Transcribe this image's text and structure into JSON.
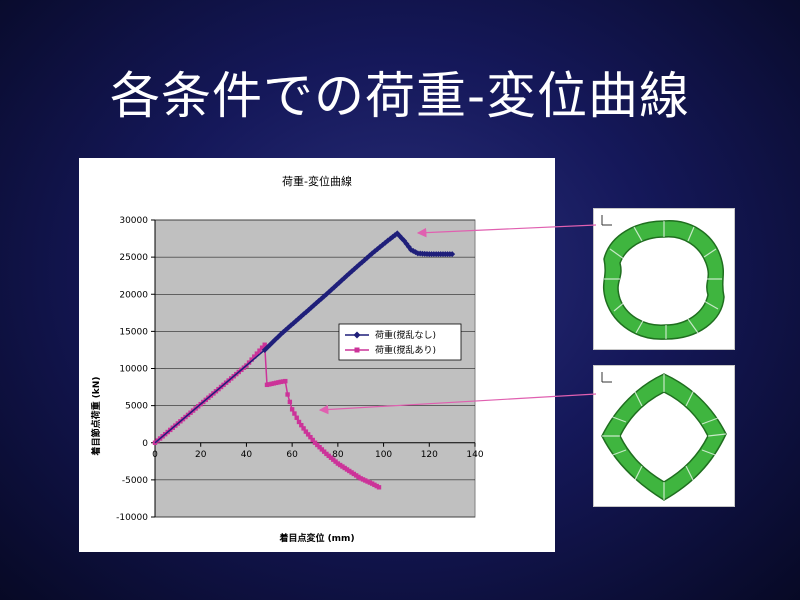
{
  "slide": {
    "title": "各条件での荷重-変位曲線"
  },
  "chart_data": {
    "type": "line",
    "title": "荷重-変位曲線",
    "xlabel": "着目点変位 (mm)",
    "ylabel": "着目節点荷重 (kN)",
    "xlim": [
      0,
      140
    ],
    "ylim": [
      -10000,
      30000
    ],
    "xticks": [
      0,
      20,
      40,
      60,
      80,
      100,
      120,
      140
    ],
    "yticks": [
      -10000,
      -5000,
      0,
      5000,
      10000,
      15000,
      20000,
      25000,
      30000
    ],
    "xtick_labels": [
      "0",
      "20",
      "40",
      "60",
      "80",
      "100",
      "120",
      "140"
    ],
    "ytick_labels": [
      "-10000",
      "-5000",
      "0",
      "5000",
      "10000",
      "15000",
      "20000",
      "25000",
      "30000"
    ],
    "grid": true,
    "legend_position": "center-right",
    "series": [
      {
        "name": "荷重(搅乱なし)",
        "color": "#1f1f7a",
        "marker": "diamond",
        "points": [
          [
            0,
            0
          ],
          [
            10,
            2600
          ],
          [
            20,
            5200
          ],
          [
            30,
            7800
          ],
          [
            40,
            10400
          ],
          [
            48,
            12500
          ],
          [
            55,
            14600
          ],
          [
            65,
            17300
          ],
          [
            75,
            20000
          ],
          [
            85,
            22800
          ],
          [
            95,
            25500
          ],
          [
            103,
            27500
          ],
          [
            106,
            28200
          ],
          [
            109,
            27200
          ],
          [
            112,
            26000
          ],
          [
            115,
            25500
          ],
          [
            120,
            25400
          ],
          [
            125,
            25400
          ],
          [
            130,
            25400
          ]
        ]
      },
      {
        "name": "荷重(搅乱あり)",
        "color": "#cc3399",
        "marker": "square",
        "points": [
          [
            0,
            0
          ],
          [
            10,
            2600
          ],
          [
            20,
            5200
          ],
          [
            30,
            7800
          ],
          [
            40,
            10400
          ],
          [
            48,
            13200
          ],
          [
            49,
            7800
          ],
          [
            52,
            8000
          ],
          [
            55,
            8200
          ],
          [
            57,
            8300
          ],
          [
            58,
            6500
          ],
          [
            60,
            4500
          ],
          [
            63,
            2800
          ],
          [
            66,
            1500
          ],
          [
            70,
            0
          ],
          [
            75,
            -1500
          ],
          [
            80,
            -2800
          ],
          [
            85,
            -3800
          ],
          [
            90,
            -4800
          ],
          [
            95,
            -5500
          ],
          [
            98,
            -6000
          ]
        ]
      }
    ]
  },
  "thumbnails": {
    "top_icon": "deformed-ring-mild-icon",
    "bottom_icon": "deformed-ring-square-icon"
  }
}
